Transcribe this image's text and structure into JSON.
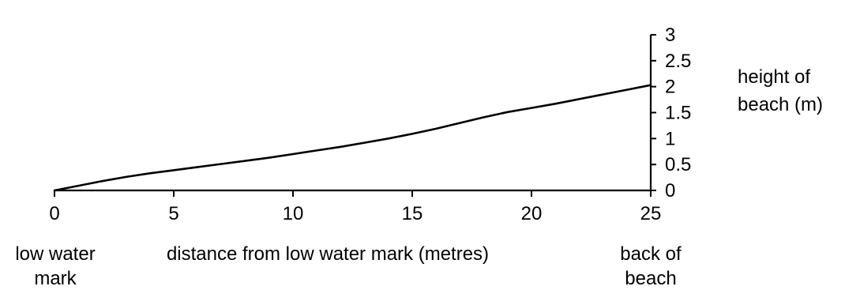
{
  "chart_data": {
    "type": "line",
    "title": "",
    "xlabel": "distance from low water mark (metres)",
    "ylabel": [
      "height of",
      "beach (m)"
    ],
    "x_end_labels": {
      "start": [
        "low water",
        "mark"
      ],
      "end": [
        "back of",
        "beach"
      ]
    },
    "xlim": [
      0,
      25
    ],
    "ylim": [
      0,
      3
    ],
    "x_ticks": [
      0,
      5,
      10,
      15,
      20,
      25
    ],
    "y_ticks": [
      0,
      0.5,
      1,
      1.5,
      2,
      2.5,
      3
    ],
    "x_tick_labels": [
      "0",
      "5",
      "10",
      "15",
      "20",
      "25"
    ],
    "y_tick_labels": [
      "0",
      "0.5",
      "1",
      "1.5",
      "2",
      "2.5",
      "3"
    ],
    "grid": false,
    "series": [
      {
        "x": [
          0,
          1,
          2,
          3,
          4,
          5,
          6,
          7,
          8,
          9,
          10,
          11,
          12,
          13,
          14,
          15,
          16,
          17,
          18,
          19,
          20,
          21,
          22,
          23,
          24,
          25
        ],
        "y": [
          0,
          0.09,
          0.18,
          0.26,
          0.33,
          0.39,
          0.45,
          0.51,
          0.57,
          0.63,
          0.7,
          0.77,
          0.84,
          0.92,
          1.0,
          1.09,
          1.19,
          1.3,
          1.41,
          1.51,
          1.59,
          1.67,
          1.76,
          1.85,
          1.94,
          2.03
        ]
      }
    ]
  }
}
